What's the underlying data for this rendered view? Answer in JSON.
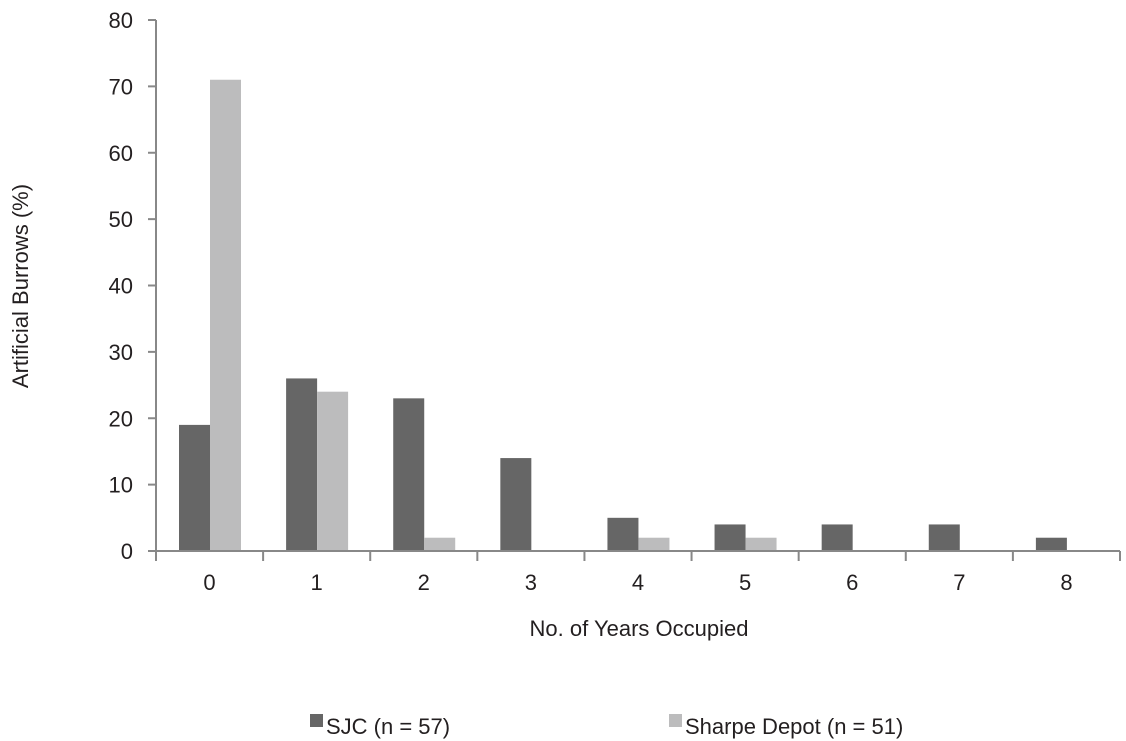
{
  "chart_data": {
    "type": "bar",
    "title": "",
    "xlabel": "No. of Years Occupied",
    "ylabel": "Artificial Burrows (%)",
    "ylim": [
      0,
      80
    ],
    "yticks": [
      "0",
      "10",
      "20",
      "30",
      "40",
      "50",
      "60",
      "70",
      "80"
    ],
    "categories": [
      "0",
      "1",
      "2",
      "3",
      "4",
      "5",
      "6",
      "7",
      "8"
    ],
    "series": [
      {
        "name": "SJC (n = 57)",
        "color": "#666666",
        "values": [
          19,
          26,
          23,
          14,
          5,
          4,
          4,
          4,
          2
        ]
      },
      {
        "name": "Sharpe Depot (n = 51)",
        "color": "#bcbcbd",
        "values": [
          71,
          24,
          2,
          0,
          2,
          2,
          0,
          0,
          0
        ]
      }
    ],
    "grid": false,
    "legend_position": "bottom"
  }
}
